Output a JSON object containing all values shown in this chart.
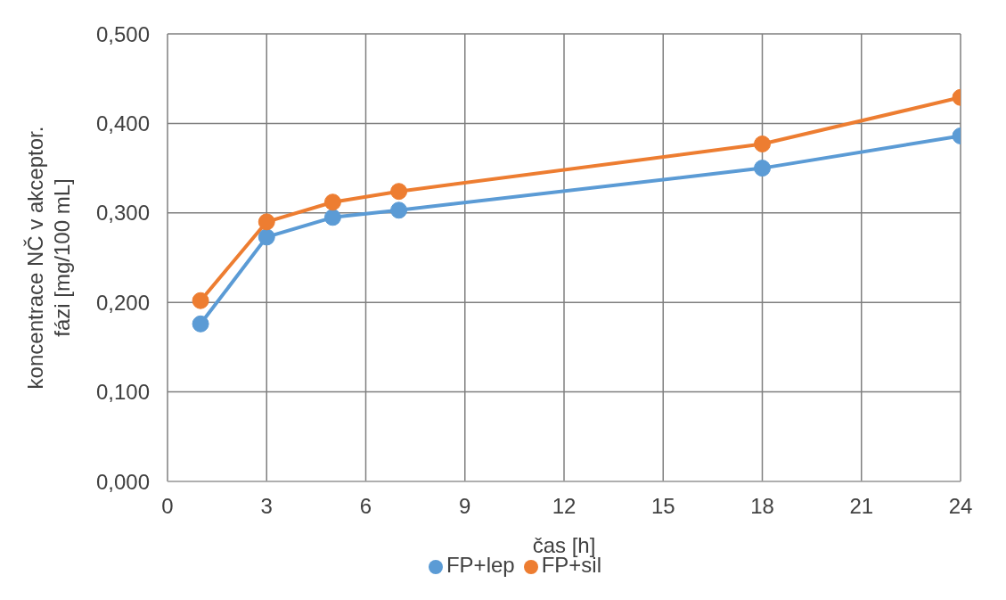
{
  "chart_data": {
    "type": "line",
    "xlabel": "čas [h]",
    "ylabel": "koncentrace NČ v akceptor. fázi [mg/100 mL]",
    "xlim": [
      0,
      24
    ],
    "xticks": [
      0,
      3,
      6,
      9,
      12,
      15,
      18,
      21,
      24
    ],
    "ylim": [
      0,
      0.5
    ],
    "yticks": [
      {
        "value": 0,
        "label": "0,000"
      },
      {
        "value": 0.1,
        "label": "0,100"
      },
      {
        "value": 0.2,
        "label": "0,200"
      },
      {
        "value": 0.3,
        "label": "0,300"
      },
      {
        "value": 0.4,
        "label": "0,400"
      },
      {
        "value": 0.5,
        "label": "0,500"
      }
    ],
    "x": [
      1,
      3,
      5,
      7,
      18,
      24
    ],
    "series": [
      {
        "name": "FP+lep",
        "color": "#5b9bd5",
        "values": [
          0.176,
          0.273,
          0.295,
          0.303,
          0.35,
          0.386
        ]
      },
      {
        "name": "FP+sil",
        "color": "#ed7d31",
        "values": [
          0.202,
          0.29,
          0.312,
          0.324,
          0.377,
          0.429
        ]
      }
    ],
    "grid": true,
    "legend": "bottom",
    "marker": "circle",
    "line_style": "solid"
  }
}
